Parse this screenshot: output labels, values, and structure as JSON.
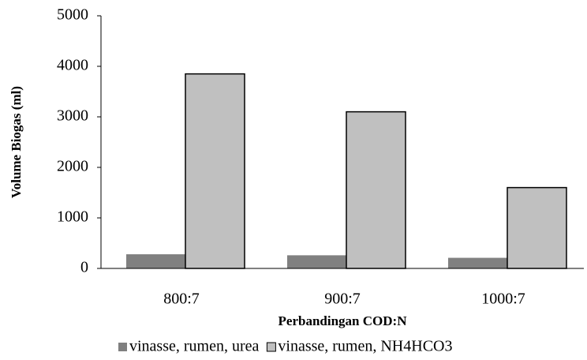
{
  "chart_data": {
    "type": "bar",
    "y_label": "Volume Biogas (ml)",
    "x_label": "Perbandingan COD:N",
    "categories": [
      "800:7",
      "900:7",
      "1000:7"
    ],
    "series": [
      {
        "name": "vinasse, rumen, urea",
        "color": "#808080",
        "values": [
          280,
          260,
          210
        ]
      },
      {
        "name": "vinasse, rumen, NH4HCO3",
        "color": "#c0c0c0",
        "values": [
          3850,
          3100,
          1600
        ]
      }
    ],
    "ylim": [
      0,
      5000
    ],
    "yticks": [
      0,
      1000,
      2000,
      3000,
      4000,
      5000
    ],
    "legend": "bottom"
  }
}
